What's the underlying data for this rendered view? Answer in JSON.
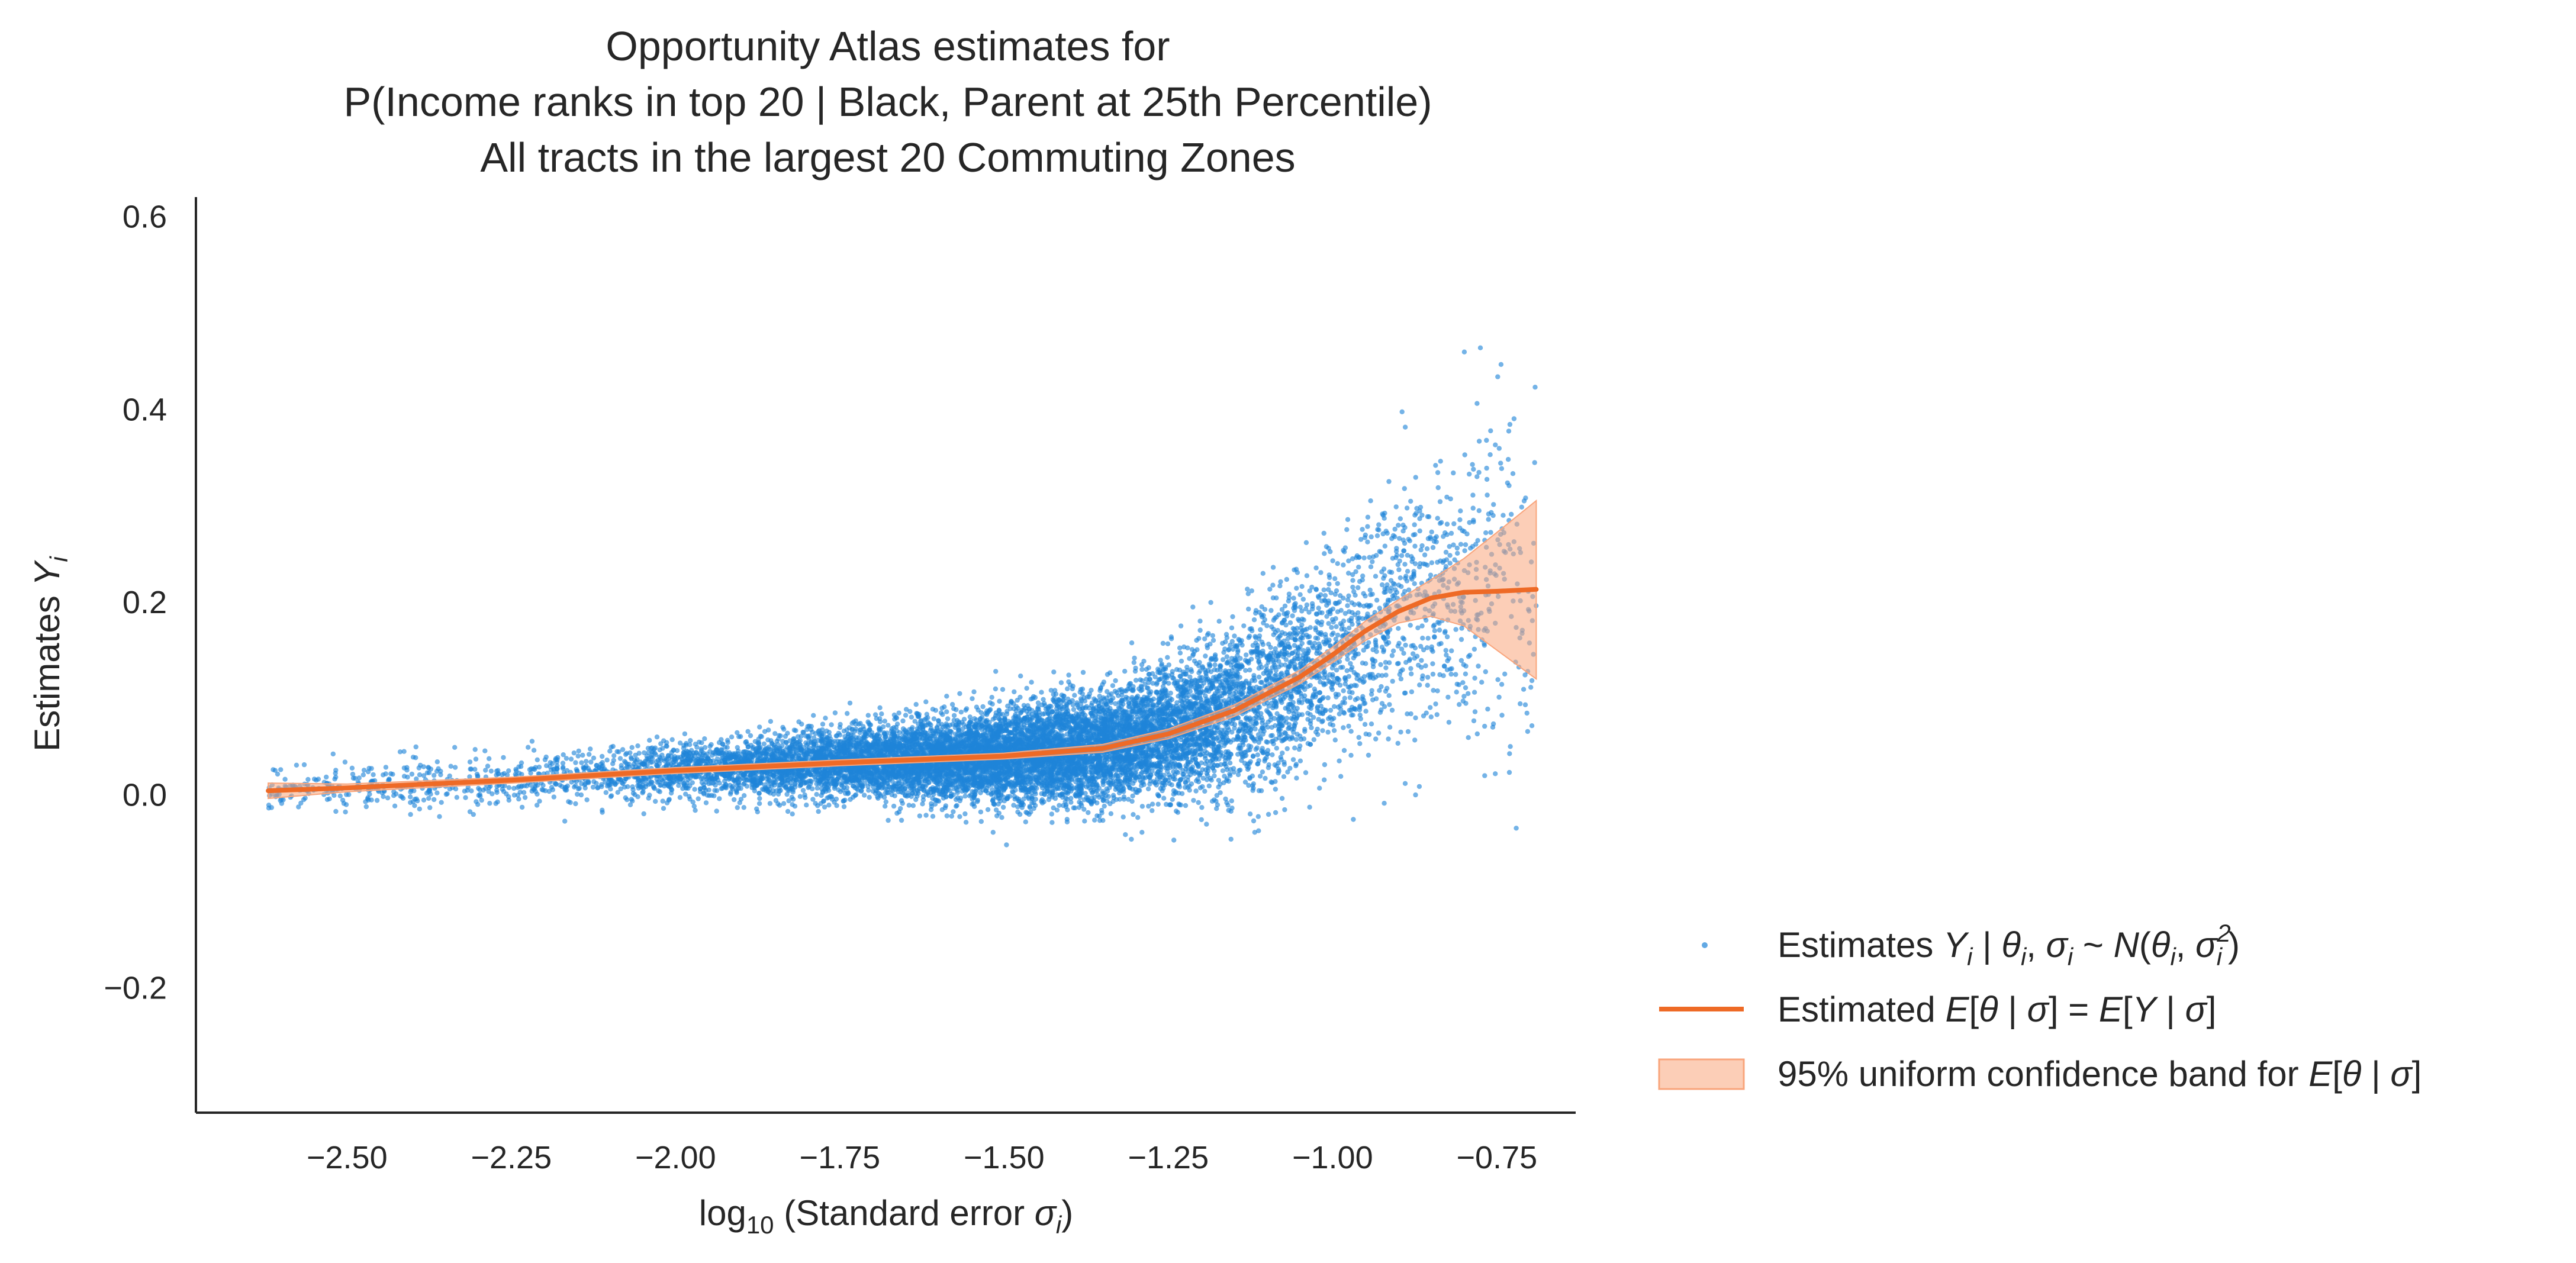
{
  "chart_data": {
    "type": "scatter",
    "title_lines": [
      "Opportunity Atlas estimates for",
      "P(Income ranks in top 20 | Black, Parent at 25th Percentile)",
      "All tracts in the largest 20 Commuting Zones"
    ],
    "xlabel": {
      "prefix": "log",
      "subscript": "10",
      "rest": " (Standard error ",
      "var": "σ",
      "var_sub": "i",
      "close": ")"
    },
    "ylabel": {
      "text": "Estimates ",
      "var": "Y",
      "var_sub": "i"
    },
    "xlim": [
      -2.73,
      -0.63
    ],
    "ylim": [
      -0.33,
      0.62
    ],
    "xticks": [
      -2.5,
      -2.25,
      -2.0,
      -1.75,
      -1.5,
      -1.25,
      -1.0,
      -0.75
    ],
    "xtick_labels": [
      "−2.50",
      "−2.25",
      "−2.00",
      "−1.75",
      "−1.50",
      "−1.25",
      "−1.00",
      "−0.75"
    ],
    "yticks": [
      -0.2,
      0.0,
      0.2,
      0.4,
      0.6
    ],
    "ytick_labels": [
      "−0.2",
      "0.0",
      "0.2",
      "0.4",
      "0.6"
    ],
    "series": [
      {
        "name": "Estimates",
        "kind": "scatter",
        "color": "#1f84d8",
        "approx_point_count": 12000,
        "x_range": [
          -2.62,
          -0.69
        ],
        "note": "Dense point cloud of tract-level estimates; spread grows with standard error"
      },
      {
        "name": "Estimated E[θ | σ] = E[Y | σ]",
        "kind": "line",
        "color": "#ee6a26",
        "x": [
          -2.62,
          -2.5,
          -2.25,
          -2.0,
          -1.75,
          -1.5,
          -1.35,
          -1.25,
          -1.15,
          -1.05,
          -1.0,
          -0.95,
          -0.9,
          -0.85,
          -0.8,
          -0.75,
          -0.69
        ],
        "y": [
          0.004,
          0.007,
          0.015,
          0.025,
          0.033,
          0.04,
          0.048,
          0.063,
          0.087,
          0.122,
          0.145,
          0.17,
          0.19,
          0.204,
          0.21,
          0.211,
          0.213
        ]
      },
      {
        "name": "95% uniform confidence band for E[θ | σ]",
        "kind": "band",
        "color": "#f9a57c",
        "x": [
          -2.62,
          -2.5,
          -2.25,
          -2.0,
          -1.75,
          -1.5,
          -1.35,
          -1.25,
          -1.15,
          -1.05,
          -1.0,
          -0.95,
          -0.9,
          -0.85,
          -0.8,
          -0.75,
          -0.69
        ],
        "lower": [
          -0.004,
          0.003,
          0.012,
          0.022,
          0.03,
          0.037,
          0.044,
          0.058,
          0.081,
          0.115,
          0.137,
          0.16,
          0.178,
          0.185,
          0.175,
          0.15,
          0.12
        ],
        "upper": [
          0.012,
          0.011,
          0.018,
          0.028,
          0.036,
          0.043,
          0.052,
          0.068,
          0.093,
          0.129,
          0.153,
          0.18,
          0.202,
          0.223,
          0.245,
          0.272,
          0.305
        ]
      }
    ],
    "legend": {
      "position": "lower-right-outside",
      "entries": [
        {
          "text_lead": "Estimates ",
          "math": "Y",
          "math_sub": "i",
          "text_mid": " | ",
          "math2": "θ",
          "math2_sub": "i",
          "text_mid2": ", ",
          "math3": "σ",
          "math3_sub": "i",
          "text_tail": " ~ ",
          "math4": "N",
          "text_tail2": "(",
          "math5": "θ",
          "math5_sub": "i",
          "text_tail3": ", ",
          "math6": "σ",
          "math6_sup": "2",
          "math6_sub": "i",
          "text_tail4": ")"
        },
        {
          "text_lead": "Estimated ",
          "math": "E",
          "text_mid": "[",
          "math2": "θ",
          "text_mid2": " | ",
          "math3": "σ",
          "text_tail": "] = ",
          "math4": "E",
          "text_tail2": "[",
          "math5": "Y",
          "text_tail3": " | ",
          "math6": "σ",
          "text_tail4": "]"
        },
        {
          "text_lead": "95% uniform confidence band for ",
          "math": "E",
          "text_mid": "[",
          "math2": "θ",
          "text_mid2": " | ",
          "math3": "σ",
          "text_tail": "]"
        }
      ]
    }
  }
}
